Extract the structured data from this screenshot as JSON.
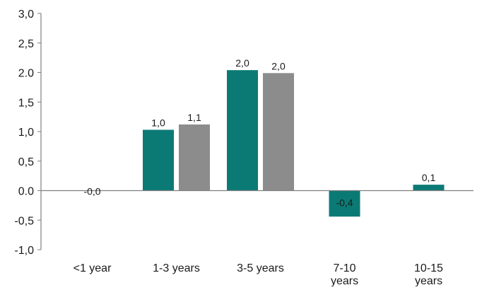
{
  "chart_data": {
    "type": "bar",
    "title": "",
    "xlabel": "",
    "ylabel": "",
    "categories": [
      "<1 year",
      "1-3 years",
      "3-5 years",
      "7-10 years",
      "10-15 years"
    ],
    "category_lines": [
      [
        "<1 year"
      ],
      [
        "1-3 years"
      ],
      [
        "3-5 years"
      ],
      [
        "7-10",
        "years"
      ],
      [
        "10-15",
        "years"
      ]
    ],
    "series": [
      {
        "color": "#0b7a75",
        "values": [
          0.0,
          1.03,
          2.04,
          -0.44,
          0.1
        ],
        "labels": [
          "-0,0",
          "1,0",
          "2,0",
          "-0,4",
          "0,1"
        ]
      },
      {
        "color": "#8c8c8c",
        "values": [
          null,
          1.12,
          1.99,
          null,
          null
        ],
        "labels": [
          null,
          "1,1",
          "2,0",
          null,
          null
        ]
      }
    ],
    "ylim": [
      -1.0,
      3.0
    ],
    "yticks": [
      -1.0,
      -0.5,
      0.0,
      0.5,
      1.0,
      1.5,
      2.0,
      2.5,
      3.0
    ],
    "ytick_labels": [
      "-1,0",
      "-0,5",
      "0.0",
      "0,5",
      "1,0",
      "1,5",
      "2.0",
      "2,5",
      "3,0"
    ],
    "grid": false,
    "legend": "none",
    "colors": {
      "axis": "#7f7f7f",
      "text": "#1a1a1a"
    }
  }
}
